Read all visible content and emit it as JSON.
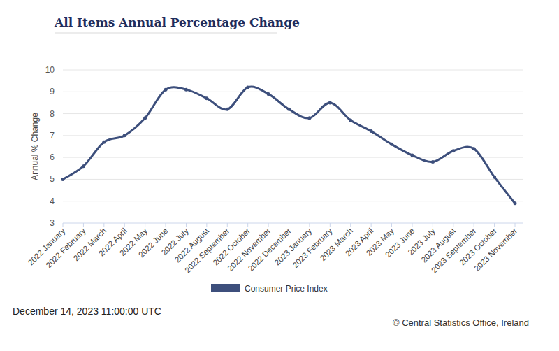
{
  "chart_data": {
    "type": "line",
    "title": "All Items Annual Percentage Change",
    "y_label": "Annual % Change",
    "categories": [
      "2022 January",
      "2022 February",
      "2022 March",
      "2022 April",
      "2022 May",
      "2022 June",
      "2022 July",
      "2022 August",
      "2022 September",
      "2022 October",
      "2022 November",
      "2022 December",
      "2023 January",
      "2023 February",
      "2023 March",
      "2023 April",
      "2023 May",
      "2023 June",
      "2023 July",
      "2023 August",
      "2023 September",
      "2023 October",
      "2023 November"
    ],
    "series": [
      {
        "name": "Consumer Price Index",
        "color": "#3d4f7c",
        "marker": "circle",
        "values": [
          5.0,
          5.6,
          6.7,
          7.0,
          7.8,
          9.1,
          9.1,
          8.7,
          8.2,
          9.2,
          8.9,
          8.2,
          7.8,
          8.5,
          7.7,
          7.2,
          6.6,
          6.1,
          5.8,
          6.3,
          6.4,
          5.1,
          3.9
        ]
      }
    ],
    "ylim": [
      3,
      10
    ],
    "yticks": [
      3,
      4,
      5,
      6,
      7,
      8,
      9,
      10
    ],
    "grid": true,
    "legend": "bottom",
    "annotations": [
      "December 14, 2023 11:00:00 UTC",
      "© Central Statistics Office, Ireland"
    ]
  }
}
